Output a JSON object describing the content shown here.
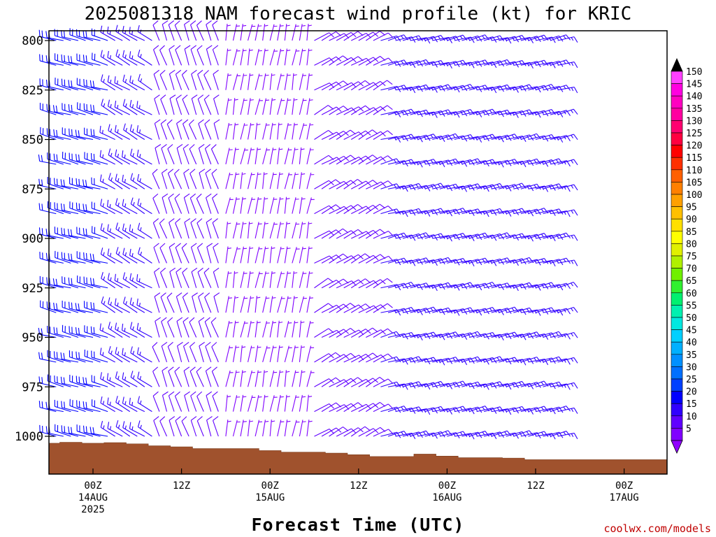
{
  "chart_data": {
    "type": "wind-barb-profile",
    "title": "2025081318 NAM forecast wind profile (kt) for KRIC",
    "xlabel": "Forecast Time (UTC)",
    "ylabel": "",
    "credit": "coolwx.com/models",
    "y_axis": {
      "scale": "pressure (hPa), inverted",
      "ylim": [
        1018,
        796
      ],
      "ticks": [
        800,
        825,
        850,
        875,
        900,
        925,
        950,
        975,
        1000
      ]
    },
    "x_axis": {
      "range_hours_from_init": [
        -1,
        69
      ],
      "ticks": [
        {
          "hour": 6,
          "lines": [
            "00Z",
            "14AUG",
            "2025"
          ]
        },
        {
          "hour": 18,
          "lines": [
            "12Z",
            "",
            ""
          ]
        },
        {
          "hour": 30,
          "lines": [
            "00Z",
            "15AUG",
            ""
          ]
        },
        {
          "hour": 42,
          "lines": [
            "12Z",
            "",
            ""
          ]
        },
        {
          "hour": 54,
          "lines": [
            "00Z",
            "16AUG",
            ""
          ]
        },
        {
          "hour": 66,
          "lines": [
            "12Z",
            "",
            ""
          ]
        },
        {
          "hour": 78,
          "lines": [
            "00Z",
            "17AUG",
            ""
          ]
        }
      ],
      "hour_spacing_note": "forecast hour 0 = 2025-08-13 18Z"
    },
    "colorbar": {
      "units": "kt",
      "labels": [
        5,
        10,
        15,
        20,
        25,
        30,
        35,
        40,
        45,
        50,
        55,
        60,
        65,
        70,
        75,
        80,
        85,
        90,
        95,
        100,
        105,
        110,
        115,
        120,
        125,
        130,
        135,
        140,
        145,
        150
      ],
      "colors": [
        "#8000ff",
        "#6000ff",
        "#3000ff",
        "#0000ff",
        "#0040ff",
        "#0070ff",
        "#0090ff",
        "#00b0ff",
        "#00d0ff",
        "#00e8e0",
        "#00f0b0",
        "#00f070",
        "#30f030",
        "#70f000",
        "#b0f000",
        "#e0f000",
        "#ffff00",
        "#ffe000",
        "#ffc000",
        "#ffa000",
        "#ff8000",
        "#ff6000",
        "#ff3000",
        "#ff0000",
        "#ff0040",
        "#ff0070",
        "#ff00a0",
        "#ff00c0",
        "#ff00e0",
        "#ff40ff"
      ],
      "under_color": "#9000ff",
      "over_color": "#000000"
    },
    "terrain": {
      "color": "#a0522d",
      "surface_pressure_by_hour": [
        {
          "hour": 0,
          "p": 1003.5
        },
        {
          "hour": 3,
          "p": 1003.0
        },
        {
          "hour": 6,
          "p": 1003.5
        },
        {
          "hour": 9,
          "p": 1003.2
        },
        {
          "hour": 12,
          "p": 1003.8
        },
        {
          "hour": 15,
          "p": 1004.8
        },
        {
          "hour": 18,
          "p": 1005.3
        },
        {
          "hour": 21,
          "p": 1006.2
        },
        {
          "hour": 24,
          "p": 1006.2
        },
        {
          "hour": 27,
          "p": 1006.2
        },
        {
          "hour": 30,
          "p": 1007.2
        },
        {
          "hour": 33,
          "p": 1008.0
        },
        {
          "hour": 36,
          "p": 1008.0
        },
        {
          "hour": 39,
          "p": 1008.5
        },
        {
          "hour": 42,
          "p": 1009.3
        },
        {
          "hour": 45,
          "p": 1010.2
        },
        {
          "hour": 48,
          "p": 1010.2
        },
        {
          "hour": 51,
          "p": 1009.0
        },
        {
          "hour": 54,
          "p": 1010.0
        },
        {
          "hour": 57,
          "p": 1010.8
        },
        {
          "hour": 60,
          "p": 1010.8
        },
        {
          "hour": 63,
          "p": 1011.0
        },
        {
          "hour": 66,
          "p": 1011.8
        },
        {
          "hour": 69,
          "p": 1011.8
        }
      ]
    },
    "barbs": {
      "levels_hpa": [
        800,
        812.5,
        825,
        837.5,
        850,
        862.5,
        875,
        887.5,
        900,
        912.5,
        925,
        937.5,
        950,
        962.5,
        975,
        987.5,
        1000
      ],
      "groups": [
        {
          "hour_from": 0,
          "hour_to": 9,
          "dir_deg": 285,
          "speed_kt": 20
        },
        {
          "hour_from": 9,
          "hour_to": 15,
          "dir_deg": 300,
          "speed_kt": 15
        },
        {
          "hour_from": 15,
          "hour_to": 24,
          "dir_deg": 340,
          "speed_kt": 10
        },
        {
          "hour_from": 24,
          "hour_to": 36,
          "dir_deg": 10,
          "speed_kt": 5
        },
        {
          "hour_from": 36,
          "hour_to": 45,
          "dir_deg": 60,
          "speed_kt": 10
        },
        {
          "hour_from": 45,
          "hour_to": 70,
          "dir_deg": 75,
          "speed_kt": 15
        }
      ]
    }
  }
}
